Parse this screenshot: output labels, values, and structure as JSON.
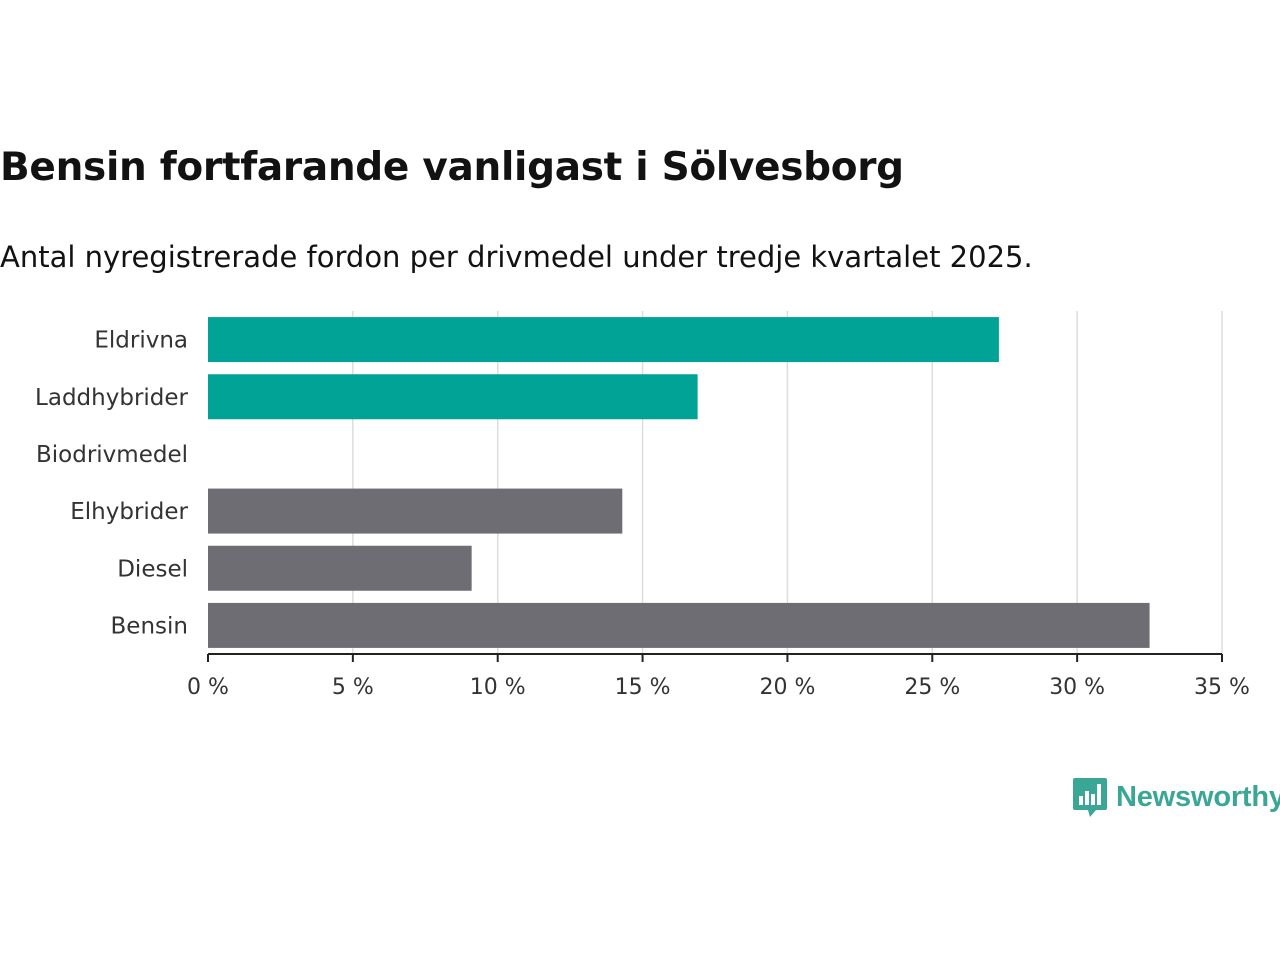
{
  "title": "Bensin fortfarande vanligast i Sölvesborg",
  "subtitle": "Antal nyregistrerade fordon per drivmedel under tredje kvartalet 2025.",
  "logo": {
    "text": "Newsworthy",
    "icon": "bar-chart-speech-bubble-icon"
  },
  "colors": {
    "highlight": "#00a396",
    "muted": "#6e6d73",
    "grid": "#dddddd",
    "axis": "#222222"
  },
  "chart_data": {
    "type": "bar",
    "orientation": "horizontal",
    "categories": [
      "Eldrivna",
      "Laddhybrider",
      "Biodrivmedel",
      "Elhybrider",
      "Diesel",
      "Bensin"
    ],
    "values": [
      27.3,
      16.9,
      0,
      14.3,
      9.1,
      32.5
    ],
    "highlighted": [
      true,
      true,
      false,
      false,
      false,
      false
    ],
    "xlim": [
      0,
      35
    ],
    "ticks": [
      0,
      5,
      10,
      15,
      20,
      25,
      30,
      35
    ],
    "tick_labels": [
      "0 %",
      "5 %",
      "10 %",
      "15 %",
      "20 %",
      "25 %",
      "30 %",
      "35 %"
    ],
    "unit": "%",
    "grid": true,
    "legend": "none"
  }
}
